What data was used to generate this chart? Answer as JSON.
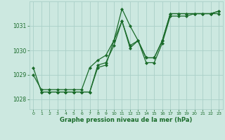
{
  "bg_color": "#cce8e0",
  "grid_color": "#aacfc8",
  "line_color": "#1a6b2a",
  "text_color": "#1a6b2a",
  "xlabel": "Graphe pression niveau de la mer (hPa)",
  "ylim": [
    1027.6,
    1032.0
  ],
  "xlim": [
    -0.5,
    23.5
  ],
  "yticks": [
    1028,
    1029,
    1030,
    1031
  ],
  "xticks": [
    0,
    1,
    2,
    3,
    4,
    5,
    6,
    7,
    8,
    9,
    10,
    11,
    12,
    13,
    14,
    15,
    16,
    17,
    18,
    19,
    20,
    21,
    22,
    23
  ],
  "series": [
    {
      "x": [
        0,
        1,
        2,
        3,
        4,
        5,
        6,
        7,
        8,
        9,
        10,
        11,
        12,
        13,
        14,
        15,
        16,
        17,
        18,
        19,
        20,
        21,
        22,
        23
      ],
      "y": [
        1029.3,
        1028.3,
        1028.3,
        1028.3,
        1028.3,
        1028.3,
        1028.3,
        1028.3,
        1029.3,
        1029.4,
        1030.4,
        1031.7,
        1031.0,
        1030.4,
        1029.7,
        1029.7,
        1030.4,
        1031.5,
        1031.5,
        1031.5,
        1031.5,
        1031.5,
        1031.5,
        1031.5
      ]
    },
    {
      "x": [
        1,
        2,
        3,
        4,
        5,
        6,
        7,
        8,
        9,
        10,
        11,
        12,
        13,
        14,
        15,
        16,
        17,
        18,
        19,
        20,
        21,
        22,
        23
      ],
      "y": [
        1028.3,
        1028.3,
        1028.3,
        1028.3,
        1028.3,
        1028.3,
        1028.3,
        1029.4,
        1029.5,
        1030.2,
        1031.2,
        1030.1,
        1030.4,
        1029.7,
        1029.7,
        1030.4,
        1031.5,
        1031.5,
        1031.5,
        1031.5,
        1031.5,
        1031.5,
        1031.6
      ]
    },
    {
      "x": [
        0,
        1,
        2,
        3,
        4,
        5,
        6,
        7,
        8,
        9,
        10,
        11,
        12,
        13,
        14,
        15,
        16,
        17,
        18,
        19,
        20,
        21,
        22,
        23
      ],
      "y": [
        1029.0,
        1028.4,
        1028.4,
        1028.4,
        1028.4,
        1028.4,
        1028.4,
        1029.3,
        1029.6,
        1029.8,
        1030.4,
        1031.2,
        1030.2,
        1030.4,
        1029.5,
        1029.5,
        1030.3,
        1031.4,
        1031.4,
        1031.4,
        1031.5,
        1031.5,
        1031.5,
        1031.6
      ]
    }
  ]
}
